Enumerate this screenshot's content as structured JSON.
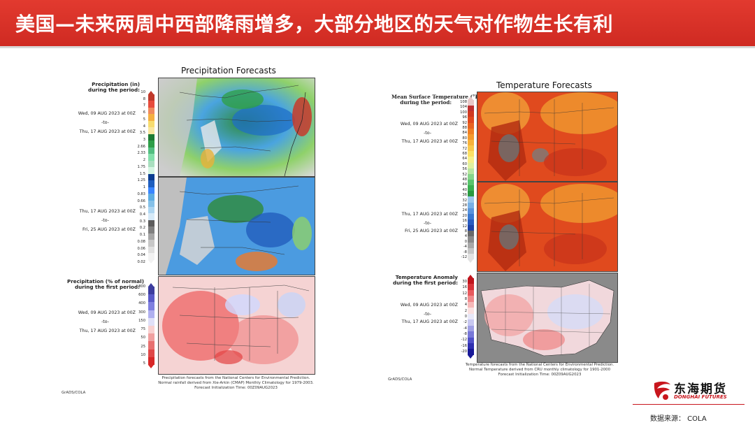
{
  "header": {
    "title": "美国—未来两周中西部降雨增多，大部分地区的天气对作物生长有利",
    "accent": "#d6302a"
  },
  "left": {
    "title": "Precipitation Forecasts",
    "precip_label_1": "Precipitation (in)",
    "precip_label_2": "during the period:",
    "p1_from": "Wed, 09 AUG 2023 at 00Z",
    "p1_to": "-to-",
    "p1_end": "Thu, 17 AUG 2023 at 00Z",
    "p2_from": "Thu, 17 AUG 2023 at 00Z",
    "p2_to": "-to-",
    "p2_end": "Fri, 25 AUG 2023 at 00Z",
    "pct_label_1": "Precipitation (% of normal)",
    "pct_label_2": "during the first period:",
    "p3_from": "Wed, 09 AUG 2023 at 00Z",
    "p3_to": "-to-",
    "p3_end": "Thu, 17 AUG 2023 at 00Z",
    "precip_ticks": [
      "10",
      "8",
      "7",
      "6",
      "5",
      "4",
      "3.5",
      "3",
      "2.66",
      "2.33",
      "2",
      "1.75",
      "1.5",
      "1.25",
      "1",
      "0.83",
      "0.66",
      "0.5",
      "0.4",
      "0.3",
      "0.2",
      "0.1",
      "0.08",
      "0.06",
      "0.04",
      "0.02"
    ],
    "pct_ticks": [
      "800",
      "600",
      "400",
      "300",
      "150",
      "75",
      "50",
      "25",
      "10",
      "5"
    ],
    "footer_1": "Precipitation forecasts from the National Centers for Environmental Prediction.",
    "footer_2": "Normal rainfall derived from Xie-Arkin (CMAP) Monthly Climatology for 1979-2003.",
    "footer_3": "Forecast Initialization Time: 00Z09AUG2023",
    "grads": "GrADS/COLA"
  },
  "right": {
    "title": "Temperature Forecasts",
    "temp_label_1": "Mean Surface Temperature (°F)",
    "temp_label_2": "during the period:",
    "p1_from": "Wed, 09 AUG 2023 at 00Z",
    "p1_to": "-to-",
    "p1_end": "Thu, 17 AUG 2023 at 00Z",
    "p2_from": "Thu, 17 AUG 2023 at 00Z",
    "p2_to": "-to-",
    "p2_end": "Fri, 25 AUG 2023 at 00Z",
    "anom_label_1": "Temperature Anomaly",
    "anom_label_2": "during the first period:",
    "p3_from": "Wed, 09 AUG 2023 at 00Z",
    "p3_to": "-to-",
    "p3_end": "Thu, 17 AUG 2023 at 00Z",
    "temp_ticks": [
      "108",
      "104",
      "100",
      "96",
      "92",
      "88",
      "84",
      "80",
      "76",
      "72",
      "68",
      "64",
      "60",
      "56",
      "52",
      "48",
      "44",
      "40",
      "36",
      "32",
      "28",
      "24",
      "20",
      "16",
      "12",
      "8",
      "4",
      "0",
      "-4",
      "-8",
      "-12"
    ],
    "anom_ticks": [
      "30",
      "16",
      "12",
      "8",
      "4",
      "2",
      "0",
      "-2",
      "-4",
      "-8",
      "-12",
      "-16",
      "-20"
    ],
    "footer_1": "Temperature forecasts from the National Centers for Environmental Prediction.",
    "footer_2": "Normal Temperature derived from CRU monthly climatology for 1901-2000",
    "footer_3": "Forecast Initialization Time: 00Z09AUG2023",
    "grads": "GrADS/COLA"
  },
  "logo": {
    "cn": "东海期货",
    "en": "DONGHAI FUTURES",
    "icon": "donghai-logo-icon",
    "color": "#c8161d"
  },
  "source": "数据来源：  COLA"
}
